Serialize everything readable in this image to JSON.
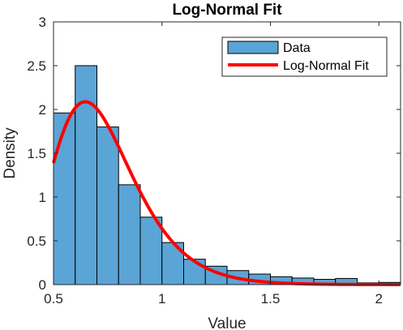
{
  "chart_data": {
    "type": "histogram",
    "title": "Log-Normal Fit",
    "xlabel": "Value",
    "ylabel": "Density",
    "xlim": [
      0.5,
      2.1
    ],
    "ylim": [
      0,
      3
    ],
    "xticks": [
      0.5,
      1,
      1.5,
      2
    ],
    "xtick_labels": [
      "0.5",
      "1",
      "1.5",
      "2"
    ],
    "yticks": [
      0,
      0.5,
      1,
      1.5,
      2,
      2.5,
      3
    ],
    "ytick_labels": [
      "0",
      "0.5",
      "1",
      "1.5",
      "2",
      "2.5",
      "3"
    ],
    "grid": false,
    "legend_position": "top-right",
    "bins": {
      "edges": [
        0.5,
        0.6,
        0.7,
        0.8,
        0.9,
        1.0,
        1.1,
        1.2,
        1.3,
        1.4,
        1.5,
        1.6,
        1.7,
        1.8,
        1.9,
        2.0,
        2.1
      ],
      "values": [
        1.96,
        2.5,
        1.8,
        1.14,
        0.77,
        0.48,
        0.29,
        0.21,
        0.16,
        0.12,
        0.09,
        0.075,
        0.06,
        0.07,
        0.02,
        0.025
      ]
    },
    "fit": {
      "distribution": "lognormal",
      "mu": -0.356,
      "sigma": 0.284,
      "x_range": [
        0.5,
        2.1
      ]
    },
    "series": [
      {
        "name": "Data",
        "kind": "bar",
        "color": "#5BA4D6",
        "edge_color": "#000000"
      },
      {
        "name": "Log-Normal Fit",
        "kind": "line",
        "color": "#FF0000"
      }
    ]
  }
}
